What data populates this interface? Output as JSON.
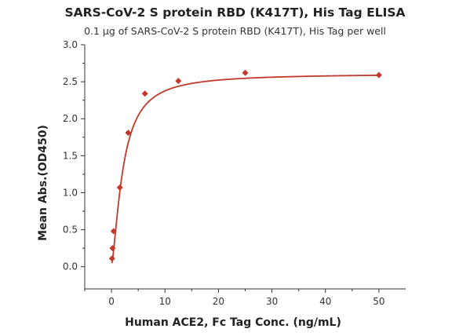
{
  "chart_data": {
    "type": "scatter",
    "title": "SARS-CoV-2 S protein RBD (K417T), His Tag ELISA",
    "subtitle": "0.1 μg of SARS-CoV-2 S protein RBD (K417T), His Tag per well",
    "xlabel": "Human ACE2, Fc Tag Conc. (ng/mL)",
    "ylabel": "Mean Abs.(OD450)",
    "xlim": [
      -5,
      55
    ],
    "ylim": [
      -0.3,
      3.0
    ],
    "x_ticks": [
      0,
      10,
      20,
      30,
      40,
      50
    ],
    "y_ticks": [
      "0.0",
      "0.5",
      "1.0",
      "1.5",
      "2.0",
      "2.5",
      "3.0"
    ],
    "grid": false,
    "series": [
      {
        "color": "#c0392b",
        "marker": "diamond",
        "fit": "four-parameter logistic curve",
        "points": [
          {
            "x": 0.1,
            "y": 0.11
          },
          {
            "x": 0.2,
            "y": 0.25
          },
          {
            "x": 0.39,
            "y": 0.48
          },
          {
            "x": 1.56,
            "y": 1.07
          },
          {
            "x": 3.13,
            "y": 1.81
          },
          {
            "x": 6.25,
            "y": 2.34
          },
          {
            "x": 12.5,
            "y": 2.51
          },
          {
            "x": 25,
            "y": 2.62
          },
          {
            "x": 50,
            "y": 2.59
          }
        ]
      }
    ]
  }
}
